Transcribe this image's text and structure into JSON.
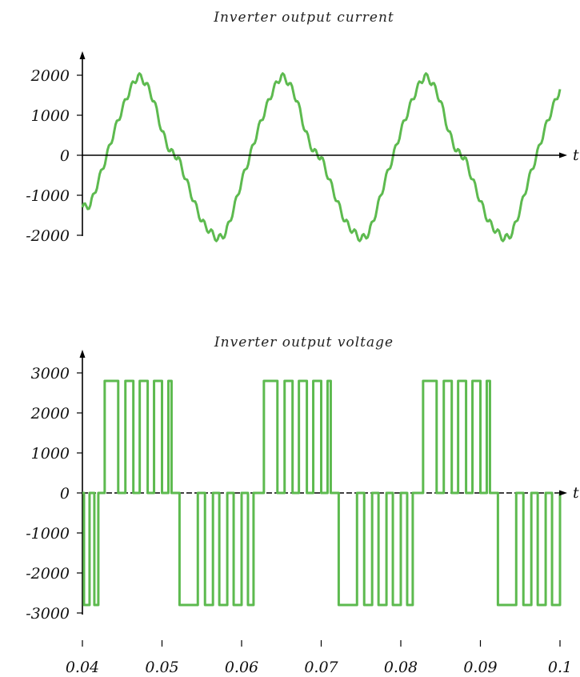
{
  "chart_data": [
    {
      "type": "line",
      "title": "Inverter output current",
      "xlabel": "t",
      "ylabel": "",
      "xlim": [
        0.04,
        0.1
      ],
      "ylim": [
        -2300,
        2300
      ],
      "yticks": [
        -2000,
        -1000,
        0,
        1000,
        2000
      ],
      "ytick_labels": [
        "-2000",
        "-1000",
        "0",
        "1000",
        "2000"
      ],
      "grid": false,
      "color": "#5dba4f",
      "series": [
        {
          "x": [
            0.04,
            0.041,
            0.042,
            0.043,
            0.044,
            0.045,
            0.046,
            0.047,
            0.048,
            0.049,
            0.05,
            0.051,
            0.052,
            0.053,
            0.054,
            0.055,
            0.056,
            0.057,
            0.058,
            0.059,
            0.06,
            0.061,
            0.062,
            0.063,
            0.064,
            0.065,
            0.066,
            0.067,
            0.068,
            0.069,
            0.07,
            0.071,
            0.072,
            0.073,
            0.074,
            0.075,
            0.076,
            0.077,
            0.078,
            0.079,
            0.08,
            0.081,
            0.082,
            0.083,
            0.084,
            0.085,
            0.086,
            0.087,
            0.088,
            0.089,
            0.09,
            0.091,
            0.092,
            0.093,
            0.094,
            0.095,
            0.096,
            0.097,
            0.098,
            0.099,
            0.1
          ],
          "y": [
            -1300,
            -1250,
            -650,
            -50,
            600,
            1150,
            1650,
            2000,
            1800,
            1350,
            600,
            100,
            -50,
            -600,
            -1150,
            -1650,
            -1900,
            -2100,
            -1950,
            -1350,
            -650,
            -50,
            600,
            1150,
            1650,
            2000,
            1800,
            1350,
            600,
            100,
            -50,
            -600,
            -1150,
            -1650,
            -1900,
            -2100,
            -1950,
            -1350,
            -650,
            -50,
            600,
            1150,
            1650,
            2000,
            1800,
            1350,
            600,
            100,
            -50,
            -600,
            -1150,
            -1650,
            -1900,
            -2100,
            -1950,
            -1350,
            -650,
            -50,
            600,
            1150,
            1650
          ]
        }
      ]
    },
    {
      "type": "line",
      "title": "Inverter output voltage",
      "xlabel": "t",
      "ylabel": "",
      "xlim": [
        0.04,
        0.1
      ],
      "ylim": [
        -3400,
        3400
      ],
      "yticks": [
        -3000,
        -2000,
        -1000,
        0,
        1000,
        2000,
        3000
      ],
      "ytick_labels": [
        "-3000",
        "-2000",
        "-1000",
        "0",
        "1000",
        "2000",
        "3000"
      ],
      "xticks": [
        0.04,
        0.05,
        0.06,
        0.07,
        0.08,
        0.09,
        0.1
      ],
      "xtick_labels": [
        "0.04",
        "0.05",
        "0.06",
        "0.07",
        "0.08",
        "0.09",
        "0.1"
      ],
      "grid": false,
      "color": "#5dba4f",
      "levels": [
        -2800,
        0,
        2800
      ],
      "positive_pulse_intervals": [
        [
          0.0428,
          0.0445,
          0.0454,
          0.0464,
          0.0472,
          0.0482,
          0.049,
          0.05,
          0.0508,
          0.0512
        ],
        [
          0.0628,
          0.0645,
          0.0654,
          0.0664,
          0.0672,
          0.0682,
          0.069,
          0.07,
          0.0708,
          0.0712
        ],
        [
          0.0828,
          0.0845,
          0.0854,
          0.0864,
          0.0872,
          0.0882,
          0.089,
          0.09,
          0.0908,
          0.0912
        ]
      ],
      "negative_pulse_intervals": [
        [
          0.0522,
          0.0545,
          0.0554,
          0.0564,
          0.0572,
          0.0582,
          0.059,
          0.06,
          0.0608,
          0.0615
        ],
        [
          0.0722,
          0.0745,
          0.0754,
          0.0764,
          0.0772,
          0.0782,
          0.079,
          0.08,
          0.0808,
          0.0815
        ],
        [
          0.0922,
          0.0945,
          0.0954,
          0.0964,
          0.0972,
          0.0982,
          0.099,
          0.1
        ]
      ]
    }
  ]
}
